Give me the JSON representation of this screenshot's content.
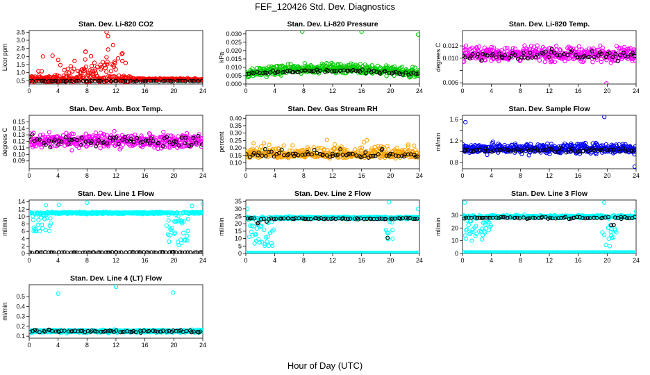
{
  "figure": {
    "title": "FEF_120426  Std. Dev. Diagnostics",
    "xlabel": "Hour of Day (UTC)"
  },
  "colors": {
    "co2": "#ff0000",
    "pressure": "#00cc00",
    "temp": "#ff00ff",
    "rh": "#ffa500",
    "flow": "#0000ff",
    "line": "#00ffff",
    "reference": "#000000"
  },
  "chart_data": [
    {
      "type": "scatter",
      "title": "Stan. Dev. Li-820 CO2",
      "ylabel": "Licor ppm",
      "xlim": [
        0,
        24
      ],
      "ylim": [
        0.3,
        3.6
      ],
      "xticks": [
        0,
        4,
        8,
        12,
        16,
        20,
        24
      ],
      "yticks": [
        0.5,
        1.0,
        1.5,
        2.0,
        2.5,
        3.0,
        3.5
      ],
      "ytick_labels": [
        "0.5",
        "1.0",
        "1.5",
        "2.0",
        "2.5",
        "3.0",
        "3.5"
      ],
      "series": [
        {
          "color_key": "co2",
          "baseline": 0.6,
          "spread": 0.35,
          "peak_center": 9,
          "peak_width": 4,
          "peak_height": 1.2,
          "outliers": [
            [
              10.7,
              3.5
            ],
            [
              10.9,
              3.25
            ],
            [
              11.6,
              2.7
            ],
            [
              12.8,
              2.15
            ],
            [
              1.9,
              2.0
            ],
            [
              7.8,
              2.3
            ],
            [
              12.9,
              2.2
            ]
          ]
        },
        {
          "color_key": "reference",
          "baseline": 0.48,
          "spread": 0.04
        }
      ]
    },
    {
      "type": "scatter",
      "title": "Stan. Dev. Li-820 Pressure",
      "ylabel": "kPa",
      "xlim": [
        0,
        24
      ],
      "ylim": [
        0.0,
        0.032
      ],
      "xticks": [
        0,
        4,
        8,
        12,
        16,
        20,
        24
      ],
      "yticks": [
        0.0,
        0.005,
        0.01,
        0.015,
        0.02,
        0.025,
        0.03
      ],
      "ytick_labels": [
        "0.000",
        "0.005",
        "0.010",
        "0.015",
        "0.020",
        "0.025",
        "0.030"
      ],
      "series": [
        {
          "color_key": "pressure",
          "baseline": 0.0065,
          "spread": 0.004,
          "arch": 0.003,
          "outliers": [
            [
              7.8,
              0.0313
            ],
            [
              16.0,
              0.0313
            ],
            [
              23.8,
              0.0296
            ]
          ]
        },
        {
          "color_key": "reference",
          "baseline": 0.006,
          "spread": 0.0015,
          "arch": 0.002
        }
      ]
    },
    {
      "type": "scatter",
      "title": "Stan. Dev. Li-820 Temp.",
      "ylabel": "degrees C",
      "xlim": [
        0,
        24
      ],
      "ylim": [
        0.0058,
        0.0145
      ],
      "xticks": [
        0,
        4,
        8,
        12,
        16,
        20,
        24
      ],
      "yticks": [
        0.006,
        0.008,
        0.01,
        0.012
      ],
      "ytick_labels": [
        "0.006",
        "",
        "0.010",
        "0.012"
      ],
      "series": [
        {
          "color_key": "temp",
          "baseline": 0.0107,
          "spread": 0.0017,
          "outliers": [
            [
              19.9,
              0.0059
            ]
          ]
        },
        {
          "color_key": "reference",
          "baseline": 0.0105,
          "spread": 0.0012
        }
      ]
    },
    {
      "type": "scatter",
      "title": "Stan. Dev. Amb. Box Temp.",
      "ylabel": "degrees C",
      "xlim": [
        0,
        24
      ],
      "ylim": [
        0.078,
        0.16
      ],
      "xticks": [
        0,
        4,
        8,
        12,
        16,
        20,
        24
      ],
      "yticks": [
        0.09,
        0.1,
        0.11,
        0.12,
        0.13,
        0.14,
        0.15
      ],
      "ytick_labels": [
        "0.09",
        "0.10",
        "0.11",
        "0.12",
        "0.13",
        "0.14",
        "0.15"
      ],
      "series": [
        {
          "color_key": "temp",
          "baseline": 0.121,
          "spread": 0.016
        },
        {
          "color_key": "reference",
          "baseline": 0.12,
          "spread": 0.012
        }
      ]
    },
    {
      "type": "scatter",
      "title": "Stan. Dev. Gas Stream RH",
      "ylabel": "percent",
      "xlim": [
        0,
        24
      ],
      "ylim": [
        0.06,
        0.42
      ],
      "xticks": [
        0,
        4,
        8,
        12,
        16,
        20,
        24
      ],
      "yticks": [
        0.1,
        0.15,
        0.2,
        0.25,
        0.3,
        0.35,
        0.4
      ],
      "ytick_labels": [
        "0.10",
        "0.15",
        "0.20",
        "0.25",
        "0.30",
        "0.35",
        "0.40"
      ],
      "series": [
        {
          "color_key": "rh",
          "baseline": 0.14,
          "spread": 0.06,
          "skew": 0.12
        },
        {
          "color_key": "reference",
          "baseline": 0.14,
          "spread": 0.05,
          "skew": 0.08
        }
      ]
    },
    {
      "type": "scatter",
      "title": "Stan. Dev. Sample Flow",
      "ylabel": "ml/min",
      "xlim": [
        0,
        24
      ],
      "ylim": [
        0.68,
        1.68
      ],
      "xticks": [
        0,
        4,
        8,
        12,
        16,
        20,
        24
      ],
      "yticks": [
        0.8,
        1.0,
        1.2,
        1.4,
        1.6
      ],
      "ytick_labels": [
        "0.8",
        "",
        "1.2",
        "",
        "1.6"
      ],
      "series": [
        {
          "color_key": "flow",
          "baseline": 1.06,
          "spread": 0.14,
          "outliers": [
            [
              19.6,
              1.65
            ],
            [
              23.8,
              0.72
            ],
            [
              0.4,
              1.55
            ]
          ]
        },
        {
          "color_key": "reference",
          "baseline": 1.03,
          "spread": 0.06
        }
      ]
    },
    {
      "type": "scatter",
      "title": "Stan. Dev. Line 1 Flow",
      "ylabel": "ml/min",
      "xlim": [
        0,
        24
      ],
      "ylim": [
        0,
        14.5
      ],
      "xticks": [
        0,
        4,
        8,
        12,
        16,
        20,
        24
      ],
      "yticks": [
        0,
        2,
        4,
        6,
        8,
        10,
        12,
        14
      ],
      "ytick_labels": [
        "0",
        "2",
        "4",
        "6",
        "8",
        "10",
        "12",
        "14"
      ],
      "series": [
        {
          "color_key": "line",
          "baseline": 11.0,
          "spread": 0.4,
          "dips": [
            [
              0.5,
              3.0,
              6.0
            ],
            [
              19.0,
              22.0,
              2.0
            ]
          ],
          "outliers": [
            [
              8.0,
              13.8
            ],
            [
              4.1,
              13.2
            ],
            [
              24.0,
              13.5
            ],
            [
              2.3,
              13.1
            ],
            [
              22.5,
              12.9
            ]
          ]
        },
        {
          "color_key": "reference",
          "baseline": 0.3,
          "spread": 0.1
        }
      ]
    },
    {
      "type": "scatter",
      "title": "Stan. Dev. Line 2 Flow",
      "ylabel": "ml/min",
      "xlim": [
        0,
        24
      ],
      "ylim": [
        0,
        36
      ],
      "xticks": [
        0,
        4,
        8,
        12,
        16,
        20,
        24
      ],
      "yticks": [
        0,
        5,
        10,
        15,
        20,
        25,
        30,
        35
      ],
      "ytick_labels": [
        "0",
        "5",
        "10",
        "15",
        "20",
        "25",
        "30",
        "35"
      ],
      "series": [
        {
          "color_key": "line",
          "baseline": 24.0,
          "spread": 1.2,
          "dips": [
            [
              0.3,
              4.0,
              5.0
            ],
            [
              19.3,
              20.3,
              9.0
            ]
          ],
          "zero_line": 0.5,
          "outliers": [
            [
              19.8,
              34.5
            ],
            [
              23.8,
              30.0
            ],
            [
              0.2,
              30.0
            ]
          ]
        },
        {
          "color_key": "reference",
          "baseline": 23.5,
          "spread": 0.8,
          "dips": [
            [
              1.5,
              3.0,
              17.0
            ],
            [
              19.5,
              20.0,
              10.0
            ]
          ]
        }
      ]
    },
    {
      "type": "scatter",
      "title": "Stan. Dev. Line 3 Flow",
      "ylabel": "ml/min",
      "xlim": [
        0,
        24
      ],
      "ylim": [
        0,
        42
      ],
      "xticks": [
        0,
        4,
        8,
        12,
        16,
        20,
        24
      ],
      "yticks": [
        0,
        10,
        20,
        30
      ],
      "ytick_labels": [
        "0",
        "10",
        "20",
        "30"
      ],
      "series": [
        {
          "color_key": "line",
          "baseline": 29.0,
          "spread": 1.5,
          "dips": [
            [
              0.3,
              4.0,
              10.0
            ],
            [
              19.3,
              21.5,
              5.0
            ]
          ],
          "zero_line": 1.0,
          "outliers": [
            [
              0.3,
              40.0
            ],
            [
              19.6,
              40.0
            ],
            [
              24.0,
              33.0
            ]
          ]
        },
        {
          "color_key": "reference",
          "baseline": 28.0,
          "spread": 1.0,
          "dips": [
            [
              1.0,
              3.0,
              28.0
            ],
            [
              20.0,
              21.0,
              22.0
            ]
          ]
        }
      ]
    },
    {
      "type": "scatter",
      "title": "Stan. Dev. Line 4 (LT) Flow",
      "ylabel": "ml/min",
      "xlim": [
        0,
        24
      ],
      "ylim": [
        0.08,
        0.62
      ],
      "xticks": [
        0,
        4,
        8,
        12,
        16,
        20,
        24
      ],
      "yticks": [
        0.1,
        0.2,
        0.3,
        0.4,
        0.5
      ],
      "ytick_labels": [
        "0.1",
        "0.2",
        "0.3",
        "0.4",
        "0.5"
      ],
      "series": [
        {
          "color_key": "line",
          "baseline": 0.15,
          "spread": 0.02,
          "outliers": [
            [
              12.0,
              0.6
            ],
            [
              4.0,
              0.53
            ],
            [
              19.9,
              0.54
            ]
          ]
        },
        {
          "color_key": "reference",
          "baseline": 0.15,
          "spread": 0.02
        }
      ]
    }
  ]
}
